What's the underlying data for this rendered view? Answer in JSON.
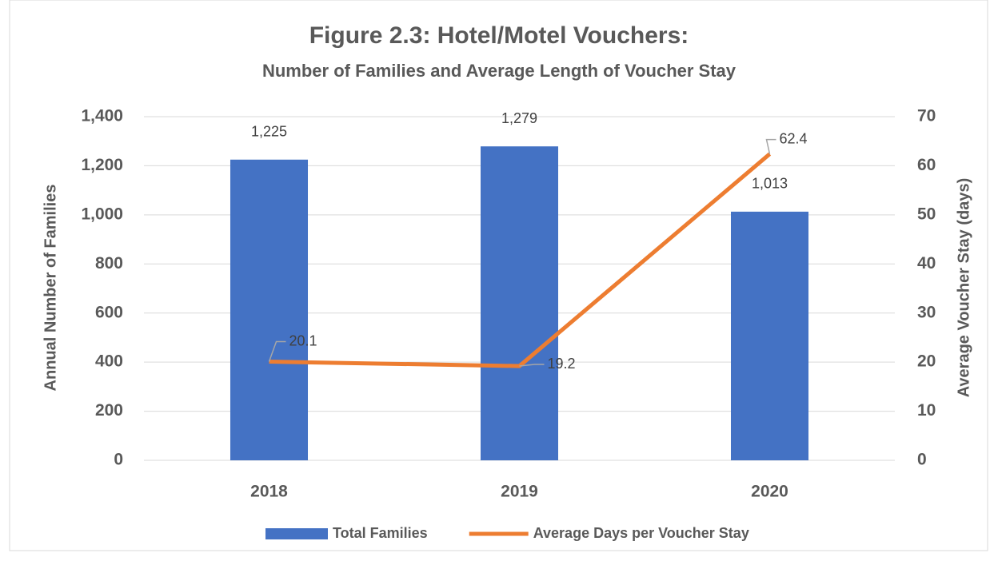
{
  "chart_data": {
    "type": "bar",
    "title": "Figure 2.3: Hotel/Motel Vouchers:",
    "subtitle": "Number of Families and Average Length of Voucher Stay",
    "y_label": "Annual Number of Families",
    "y2_label": "Average Voucher Stay (days)",
    "categories": [
      "2018",
      "2019",
      "2020"
    ],
    "series": [
      {
        "name": "Total Families",
        "type": "bar",
        "color": "#4472c4",
        "values": [
          1225,
          1279,
          1013
        ],
        "value_labels": [
          "1,225",
          "1,279",
          "1,013"
        ]
      },
      {
        "name": "Average Days per Voucher Stay",
        "type": "line",
        "axis": "y2",
        "color": "#ed7d31",
        "values": [
          20.1,
          19.2,
          62.4
        ]
      }
    ],
    "ylim": [
      0,
      1400
    ],
    "yticks": [
      0,
      200,
      400,
      600,
      800,
      {
        "value": 1000,
        "label": "1,000"
      },
      {
        "value": 1200,
        "label": "1,200"
      },
      {
        "value": 1400,
        "label": "1,400"
      }
    ],
    "y2lim": [
      0,
      70
    ],
    "y2ticks": [
      0,
      10,
      20,
      30,
      40,
      50,
      60,
      70
    ],
    "grid": true,
    "legend": "bottom"
  }
}
